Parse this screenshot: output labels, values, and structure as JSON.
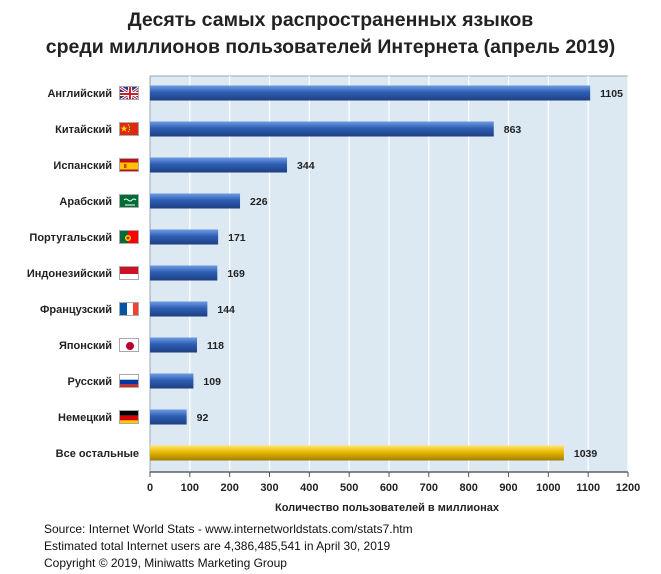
{
  "title": {
    "line1": "Десять самых распространенных языков",
    "line2": "среди миллионов пользователей Интернета (апрель 2019)"
  },
  "chart_data": {
    "type": "bar",
    "orientation": "horizontal",
    "categories": [
      "Английский",
      "Китайский",
      "Испанский",
      "Арабский",
      "Португальский",
      "Индонезийский",
      "Французский",
      "Японский",
      "Русский",
      "Немецкий",
      "Все остальные"
    ],
    "values": [
      1105,
      863,
      344,
      226,
      171,
      169,
      144,
      118,
      109,
      92,
      1039
    ],
    "value_labels": [
      "1105",
      "863",
      "344",
      "226",
      "171",
      "169",
      "144",
      "118",
      "109",
      "92",
      "1039"
    ],
    "flags": [
      "flag-uk-icon",
      "flag-china-icon",
      "flag-spain-icon",
      "flag-saudi-arabia-icon",
      "flag-portugal-icon",
      "flag-indonesia-icon",
      "flag-france-icon",
      "flag-japan-icon",
      "flag-russia-icon",
      "flag-germany-icon",
      ""
    ],
    "xlabel": "Количество пользователей в миллионах",
    "xlim": [
      0,
      1200
    ],
    "xticks": [
      0,
      100,
      200,
      300,
      400,
      500,
      600,
      700,
      800,
      900,
      1000,
      1100,
      1200
    ],
    "grid": true,
    "colors": {
      "bar": "#2f5fb5",
      "other_bar": "#e6b800",
      "plot_bg": "#dce8f2"
    }
  },
  "source": {
    "line1": "Source: Internet World Stats - www.internetworldstats.com/stats7.htm",
    "line2": "Estimated total Internet users are 4,386,485,541 in April 30, 2019",
    "line3": "Copyright ©  2019, Miniwatts Marketing Group"
  }
}
